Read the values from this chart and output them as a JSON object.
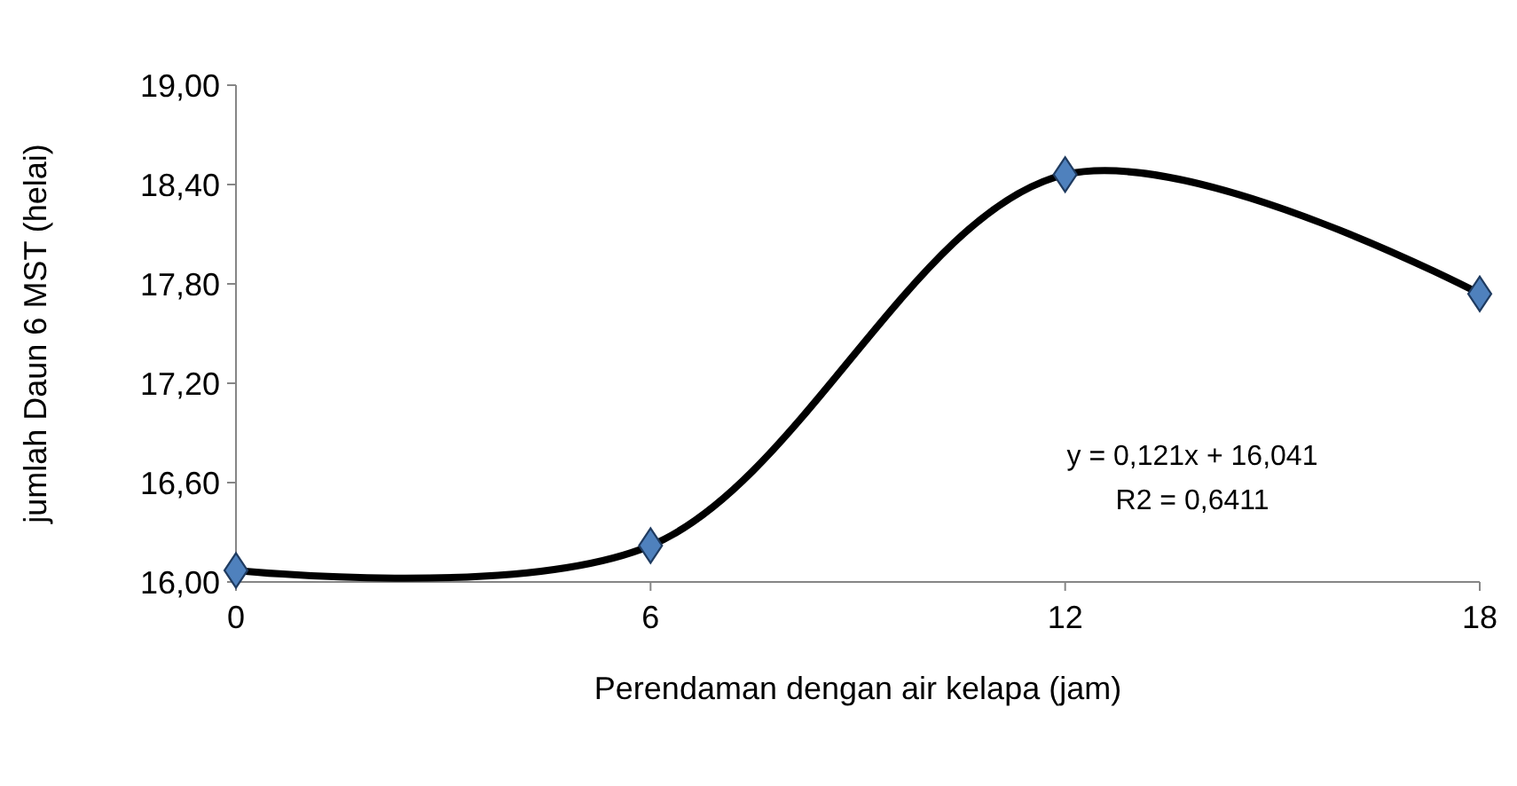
{
  "chart_data": {
    "type": "line",
    "xlabel": "Perendaman dengan air kelapa (jam)",
    "ylabel": "jumlah Daun 6 MST (helai)",
    "x": [
      0,
      6,
      12,
      18
    ],
    "series": [
      {
        "color": "#000000",
        "values": [
          16.07,
          16.22,
          18.46,
          17.74
        ]
      }
    ],
    "xlim": [
      0,
      18
    ],
    "xticks": [
      0,
      6,
      12,
      18
    ],
    "ylim": [
      16,
      19
    ],
    "yticks": [
      {
        "value": 16,
        "label": "16,00"
      },
      {
        "value": 16.6,
        "label": "16,60"
      },
      {
        "value": 17.2,
        "label": "17,20"
      },
      {
        "value": 17.8,
        "label": "17,80"
      },
      {
        "value": 18.4,
        "label": "18,40"
      },
      {
        "value": 19,
        "label": "19,00"
      }
    ],
    "marker": "diamond",
    "line_style": "solid",
    "grid": false,
    "annotations": [
      "y = 0,121x + 16,041",
      "R2 = 0,6411"
    ]
  }
}
